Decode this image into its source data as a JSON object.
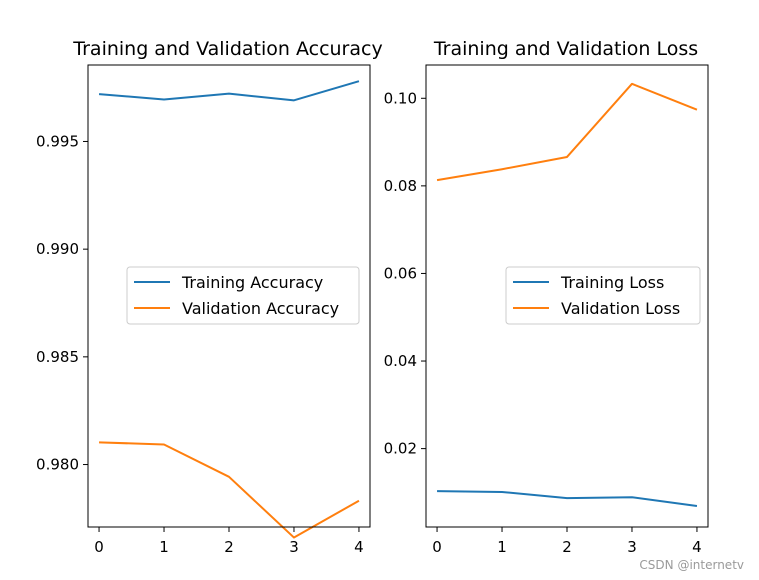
{
  "chart_data": [
    {
      "type": "line",
      "title": "Training and Validation Accuracy",
      "x": [
        0,
        1,
        2,
        3,
        4
      ],
      "xticks": [
        "0",
        "1",
        "2",
        "3",
        "4"
      ],
      "yticks": [
        0.98,
        0.985,
        0.99,
        0.995
      ],
      "ytick_labels": [
        "0.980",
        "0.985",
        "0.990",
        "0.995"
      ],
      "xlim": [
        -0.17,
        4.17
      ],
      "ylim": [
        0.9771,
        0.99855
      ],
      "legend_position": "center-right",
      "grid": false,
      "series": [
        {
          "name": "Training Accuracy",
          "color": "#1f77b4",
          "values": [
            0.9972,
            0.99695,
            0.99722,
            0.99691,
            0.9978
          ]
        },
        {
          "name": "Validation Accuracy",
          "color": "#ff7f0e",
          "values": [
            0.98103,
            0.98093,
            0.97943,
            0.97661,
            0.97832
          ]
        }
      ]
    },
    {
      "type": "line",
      "title": "Training and Validation Loss",
      "x": [
        0,
        1,
        2,
        3,
        4
      ],
      "xticks": [
        "0",
        "1",
        "2",
        "3",
        "4"
      ],
      "yticks": [
        0.02,
        0.04,
        0.06,
        0.08,
        0.1
      ],
      "ytick_labels": [
        "0.02",
        "0.04",
        "0.06",
        "0.08",
        "0.10"
      ],
      "xlim": [
        -0.17,
        4.17
      ],
      "ylim": [
        0.0021,
        0.1076
      ],
      "legend_position": "center-right",
      "grid": false,
      "series": [
        {
          "name": "Training Loss",
          "color": "#1f77b4",
          "values": [
            0.0103,
            0.0101,
            0.0087,
            0.0089,
            0.0069
          ]
        },
        {
          "name": "Validation Loss",
          "color": "#ff7f0e",
          "values": [
            0.0813,
            0.0838,
            0.0866,
            0.1033,
            0.0974
          ]
        }
      ]
    }
  ],
  "watermark": "CSDN @internetv"
}
